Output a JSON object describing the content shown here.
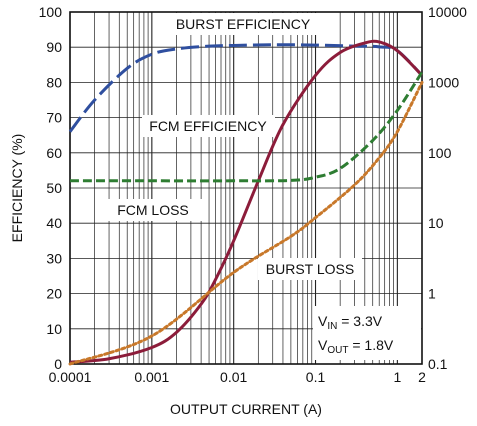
{
  "chart_data": {
    "type": "line",
    "xlabel": "OUTPUT CURRENT (A)",
    "ylabel": "EFFICIENCY (%)",
    "x_scale": "log",
    "xlim": [
      0.0001,
      2
    ],
    "ylim": [
      0,
      100
    ],
    "y2lim": [
      0.1,
      10000
    ],
    "y2_scale": "log",
    "grid": true,
    "x_ticks": [
      {
        "value": 0.0001,
        "label": "0.0001"
      },
      {
        "value": 0.001,
        "label": "0.001"
      },
      {
        "value": 0.01,
        "label": "0.01"
      },
      {
        "value": 0.1,
        "label": "0.1"
      },
      {
        "value": 1,
        "label": "1"
      },
      {
        "value": 2,
        "label": "2"
      }
    ],
    "y_ticks": [
      {
        "value": 0,
        "label": "0"
      },
      {
        "value": 10,
        "label": "10"
      },
      {
        "value": 20,
        "label": "20"
      },
      {
        "value": 30,
        "label": "30"
      },
      {
        "value": 40,
        "label": "40"
      },
      {
        "value": 50,
        "label": "50"
      },
      {
        "value": 60,
        "label": "60"
      },
      {
        "value": 70,
        "label": "70"
      },
      {
        "value": 80,
        "label": "80"
      },
      {
        "value": 90,
        "label": "90"
      },
      {
        "value": 100,
        "label": "100"
      }
    ],
    "y2_ticks": [
      {
        "value": 0.1,
        "label": "0.1"
      },
      {
        "value": 1,
        "label": "1"
      },
      {
        "value": 10,
        "label": "10"
      },
      {
        "value": 100,
        "label": "100"
      },
      {
        "value": 1000,
        "label": "1000"
      },
      {
        "value": 10000,
        "label": "10000"
      }
    ],
    "series": [
      {
        "name": "BURST EFFICIENCY",
        "axis": "left",
        "style": "long-dash",
        "color": "#2f4f9f",
        "x": [
          0.0001,
          0.0002,
          0.0005,
          0.001,
          0.002,
          0.005,
          0.01,
          0.03,
          0.1,
          0.3,
          0.6,
          1,
          2
        ],
        "y": [
          66,
          75,
          84,
          88,
          89.5,
          90.3,
          90.5,
          90.7,
          90.6,
          90.3,
          90.1,
          89,
          82
        ]
      },
      {
        "name": "FCM EFFICIENCY",
        "axis": "left",
        "style": "solid",
        "color": "#8c1c3a",
        "x": [
          0.0001,
          0.0003,
          0.001,
          0.002,
          0.004,
          0.006,
          0.01,
          0.02,
          0.04,
          0.1,
          0.2,
          0.4,
          0.6,
          1,
          2
        ],
        "y": [
          0.5,
          1.5,
          4.7,
          9,
          17,
          24,
          35,
          52,
          68,
          82,
          88.5,
          91.2,
          91.5,
          89,
          82
        ]
      },
      {
        "name": "FCM LOSS",
        "axis": "right",
        "style": "dash",
        "color": "#2e7d32",
        "x": [
          0.0001,
          0.001,
          0.01,
          0.05,
          0.1,
          0.2,
          0.5,
          1,
          2
        ],
        "y": [
          40,
          40,
          40,
          40.5,
          45,
          60,
          150,
          400,
          1400
        ]
      },
      {
        "name": "BURST LOSS",
        "axis": "right",
        "style": "dot",
        "color": "#c8782a",
        "x": [
          0.0001,
          0.001,
          0.01,
          0.05,
          0.1,
          0.3,
          0.6,
          1,
          2
        ],
        "y": [
          0.1,
          0.25,
          2,
          6.5,
          12,
          35,
          85,
          200,
          1000
        ]
      }
    ],
    "annotations": {
      "burst_eff": "BURST EFFICIENCY",
      "fcm_eff": "FCM EFFICIENCY",
      "fcm_loss": "FCM LOSS",
      "burst_loss": "BURST LOSS",
      "vin_main": "V",
      "vin_sub": "IN",
      "vin_val": " = 3.3V",
      "vout_main": "V",
      "vout_sub": "OUT",
      "vout_val": " = 1.8V"
    }
  }
}
